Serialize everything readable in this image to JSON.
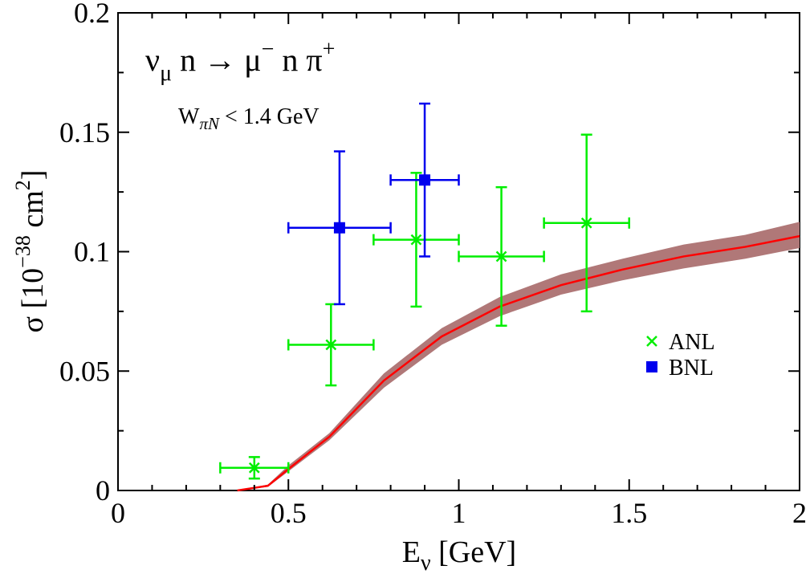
{
  "chart_data": {
    "type": "scatter",
    "title": "",
    "xlabel": {
      "main": "E",
      "sub": "ν",
      "rest": " [GeV]"
    },
    "ylabel": {
      "symbol": "σ",
      "open": " [10",
      "exp1": "−38",
      "mid": " cm",
      "exp2": "2",
      "close": "]"
    },
    "xlim": [
      0,
      2
    ],
    "ylim": [
      0,
      0.2
    ],
    "xticks": [
      {
        "value": 0,
        "label": "0"
      },
      {
        "value": 0.5,
        "label": "0.5"
      },
      {
        "value": 1,
        "label": "1"
      },
      {
        "value": 1.5,
        "label": "1.5"
      },
      {
        "value": 2,
        "label": "2"
      }
    ],
    "yticks": [
      {
        "value": 0,
        "label": "0"
      },
      {
        "value": 0.05,
        "label": "0.05"
      },
      {
        "value": 0.1,
        "label": "0.1"
      },
      {
        "value": 0.15,
        "label": "0.15"
      },
      {
        "value": 0.2,
        "label": "0.2"
      }
    ],
    "grid": false,
    "legend_position": "right",
    "annotations": {
      "reaction": {
        "nu": "ν",
        "nu_sub": "μ",
        "a": " n → μ",
        "mu_sup": "−",
        "b": " n π",
        "pi_sup": "+"
      },
      "cut": {
        "w": "W",
        "w_sub": "πN",
        "rest": " < 1.4 GeV"
      }
    },
    "series": [
      {
        "name": "ANL",
        "kind": "points",
        "marker": "x",
        "color": "#00ee00",
        "points": [
          {
            "x": 0.4,
            "y": 0.0095,
            "xerr": 0.1,
            "yerr": 0.0045
          },
          {
            "x": 0.625,
            "y": 0.061,
            "xerr": 0.125,
            "yerr": 0.017
          },
          {
            "x": 0.875,
            "y": 0.105,
            "xerr": 0.125,
            "yerr": 0.028
          },
          {
            "x": 1.125,
            "y": 0.098,
            "xerr": 0.125,
            "yerr": 0.029
          },
          {
            "x": 1.375,
            "y": 0.112,
            "xerr": 0.125,
            "yerr": 0.037
          }
        ]
      },
      {
        "name": "BNL",
        "kind": "points",
        "marker": "square",
        "color": "#0000ee",
        "points": [
          {
            "x": 0.65,
            "y": 0.11,
            "xerr": 0.15,
            "yerr": 0.032
          },
          {
            "x": 0.9,
            "y": 0.13,
            "xerr": 0.1,
            "yerr": 0.032
          }
        ]
      },
      {
        "kind": "band",
        "color": "#b07878",
        "x": [
          0.35,
          0.44,
          0.5,
          0.62,
          0.78,
          0.95,
          1.12,
          1.3,
          1.48,
          1.66,
          1.84,
          2.0
        ],
        "lower": [
          0.0,
          0.0015,
          0.008,
          0.021,
          0.043,
          0.061,
          0.073,
          0.082,
          0.088,
          0.093,
          0.097,
          0.1015
        ],
        "upper": [
          0.0,
          0.0025,
          0.0105,
          0.024,
          0.049,
          0.068,
          0.081,
          0.0905,
          0.097,
          0.103,
          0.107,
          0.1125
        ]
      },
      {
        "kind": "line",
        "color": "#ff0000",
        "x": [
          0.35,
          0.44,
          0.5,
          0.62,
          0.78,
          0.95,
          1.12,
          1.3,
          1.48,
          1.66,
          1.84,
          2.0
        ],
        "y": [
          0.0,
          0.002,
          0.009,
          0.0225,
          0.046,
          0.0645,
          0.077,
          0.086,
          0.0925,
          0.098,
          0.102,
          0.1065
        ]
      }
    ]
  }
}
